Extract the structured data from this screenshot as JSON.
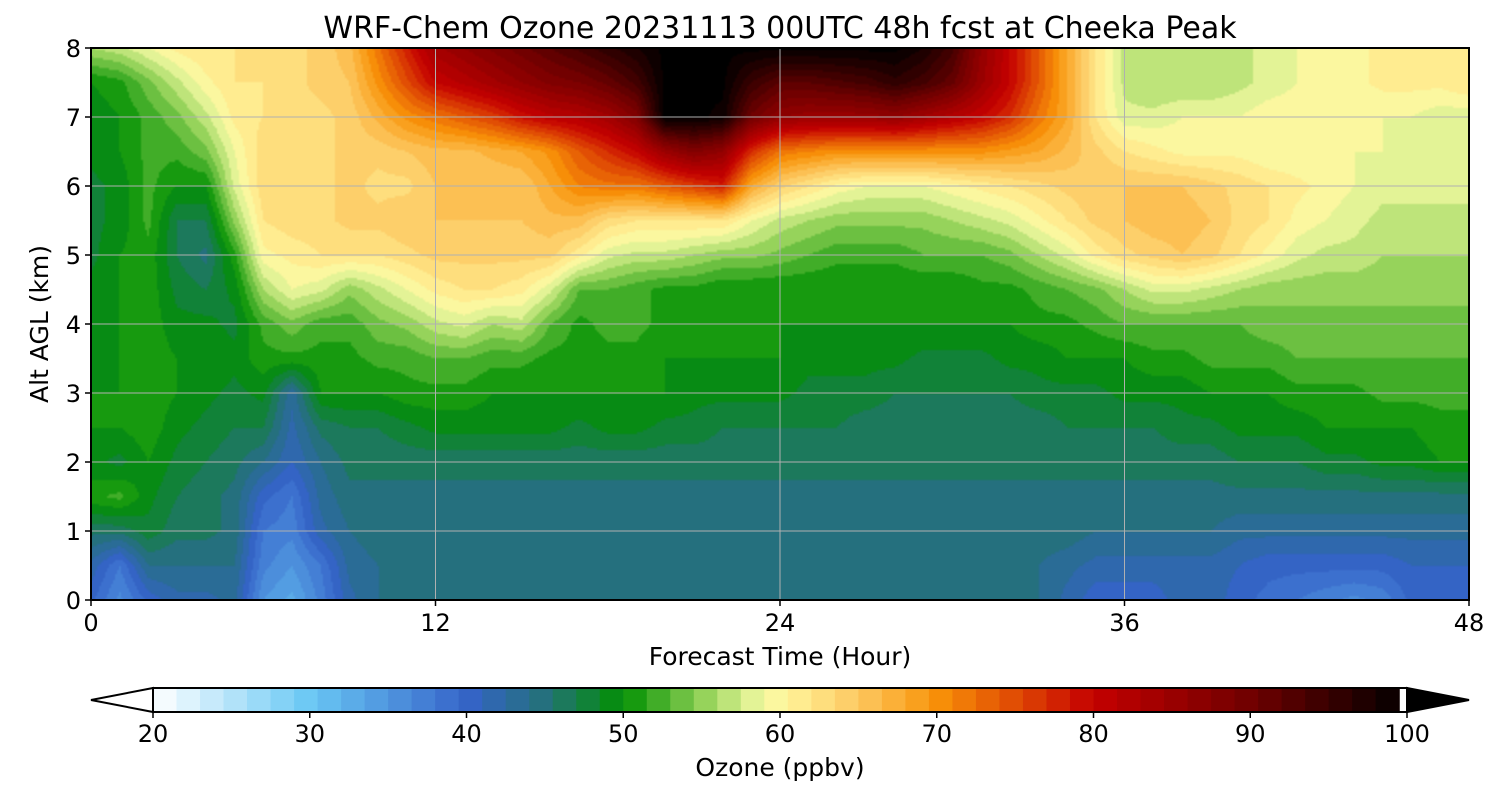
{
  "chart_data": {
    "type": "heatmap",
    "title": "WRF-Chem Ozone  20231113 00UTC 48h fcst at Cheeka Peak",
    "xlabel": "Forecast Time (Hour)",
    "ylabel": "Alt AGL (km)",
    "xlim": [
      0,
      48
    ],
    "ylim": [
      0,
      8
    ],
    "xticks": [
      "0",
      "12",
      "24",
      "36",
      "48"
    ],
    "yticks": [
      "0",
      "1",
      "2",
      "3",
      "4",
      "5",
      "6",
      "7",
      "8"
    ],
    "grid": true,
    "colorbar": {
      "label": "Ozone  (ppbv)",
      "range": [
        20,
        100
      ],
      "ticks": [
        "20",
        "30",
        "40",
        "50",
        "60",
        "70",
        "80",
        "90",
        "100"
      ],
      "extend": "both",
      "orientation": "horizontal",
      "colormap": [
        [
          20,
          "#ffffff"
        ],
        [
          30,
          "#6ac8f4"
        ],
        [
          40,
          "#3563c9"
        ],
        [
          45,
          "#24717a"
        ],
        [
          50,
          "#029002"
        ],
        [
          55,
          "#8fd056"
        ],
        [
          58,
          "#dff294"
        ],
        [
          60,
          "#fff8a0"
        ],
        [
          65,
          "#fdc860"
        ],
        [
          70,
          "#f89208"
        ],
        [
          75,
          "#e04a04"
        ],
        [
          80,
          "#c40000"
        ],
        [
          90,
          "#700000"
        ],
        [
          100,
          "#000000"
        ]
      ]
    },
    "x": [
      0,
      1,
      2,
      3,
      4,
      5,
      6,
      7,
      8,
      9,
      10,
      11,
      12,
      13,
      14,
      15,
      16,
      17,
      18,
      19,
      20,
      21,
      22,
      23,
      24,
      25,
      26,
      27,
      28,
      29,
      30,
      31,
      32,
      33,
      34,
      35,
      36,
      37,
      38,
      39,
      40,
      41,
      42,
      43,
      44,
      45,
      46,
      47,
      48
    ],
    "y": [
      0,
      0.5,
      1,
      1.5,
      2,
      2.5,
      3,
      3.5,
      4,
      4.5,
      5,
      5.5,
      6,
      6.5,
      7,
      7.5,
      8
    ],
    "z": [
      [
        40,
        36,
        40,
        42,
        42,
        43,
        35,
        33,
        37,
        42,
        44,
        45,
        45,
        45,
        45,
        45,
        45,
        45,
        45,
        45,
        45,
        45,
        45,
        45,
        45,
        45,
        45,
        45,
        45,
        45,
        45,
        45,
        45,
        44,
        42,
        40,
        40,
        40,
        42,
        42,
        40,
        39,
        38,
        37,
        36,
        37,
        40,
        40,
        40
      ],
      [
        42,
        38,
        44,
        44,
        44,
        44,
        37,
        35,
        38,
        43,
        44,
        45,
        45,
        45,
        45,
        45,
        45,
        45,
        45,
        45,
        45,
        45,
        45,
        45,
        45,
        45,
        45,
        45,
        45,
        45,
        45,
        45,
        45,
        44,
        43,
        42,
        42,
        42,
        42,
        42,
        41,
        40,
        40,
        40,
        40,
        40,
        41,
        41,
        41
      ],
      [
        46,
        46,
        48,
        46,
        46,
        45,
        38,
        37,
        42,
        44,
        45,
        45,
        45,
        45,
        45,
        45,
        45,
        45,
        45,
        45,
        45,
        45,
        45,
        45,
        45,
        45,
        45,
        45,
        45,
        45,
        45,
        45,
        45,
        45,
        45,
        44,
        44,
        44,
        44,
        44,
        43,
        43,
        43,
        43,
        43,
        43,
        43,
        43,
        43
      ],
      [
        51,
        52,
        49,
        47,
        46,
        45,
        40,
        38,
        43,
        45,
        45,
        45,
        45,
        45,
        45,
        45,
        45,
        45,
        45,
        45,
        45,
        45,
        45,
        45,
        45,
        45,
        45,
        45,
        45,
        45,
        45,
        45,
        45,
        45,
        45,
        45,
        45,
        45,
        45,
        45,
        45,
        45,
        45,
        45,
        45,
        45,
        45,
        45,
        45
      ],
      [
        49,
        48,
        50,
        48,
        47,
        46,
        44,
        41,
        44,
        46,
        46,
        46,
        46,
        46,
        46,
        46,
        46,
        46,
        46,
        46,
        46,
        46,
        46,
        46,
        46,
        46,
        46,
        46,
        46,
        46,
        46,
        46,
        46,
        46,
        46,
        46,
        46,
        46,
        46,
        46,
        47,
        47,
        47,
        48,
        48,
        49,
        49,
        50,
        50
      ],
      [
        50,
        50,
        51,
        49,
        48,
        47,
        47,
        42,
        46,
        47,
        47,
        48,
        49,
        49,
        49,
        49,
        49,
        48,
        49,
        49,
        48,
        48,
        47,
        47,
        47,
        47,
        47,
        46,
        46,
        46,
        46,
        46,
        46,
        46,
        47,
        47,
        47,
        47,
        48,
        48,
        49,
        49,
        49,
        50,
        50,
        50,
        50,
        51,
        51
      ],
      [
        50,
        50,
        51,
        50,
        49,
        48,
        49,
        43,
        50,
        50,
        50,
        51,
        51,
        51,
        50,
        50,
        50,
        50,
        50,
        50,
        50,
        49,
        49,
        49,
        49,
        48,
        48,
        48,
        47,
        47,
        47,
        47,
        47,
        48,
        48,
        48,
        49,
        49,
        49,
        50,
        50,
        50,
        51,
        51,
        51,
        52,
        52,
        52,
        52
      ],
      [
        49,
        50,
        51,
        50,
        50,
        49,
        51,
        51,
        51,
        51,
        52,
        52,
        53,
        53,
        52,
        52,
        51,
        51,
        51,
        51,
        50,
        50,
        50,
        50,
        50,
        49,
        49,
        49,
        49,
        48,
        48,
        48,
        49,
        49,
        50,
        50,
        50,
        51,
        51,
        52,
        52,
        52,
        53,
        53,
        53,
        53,
        53,
        53,
        53
      ],
      [
        49,
        50,
        51,
        49,
        49,
        48,
        52,
        54,
        52,
        52,
        54,
        55,
        57,
        58,
        56,
        57,
        53,
        51,
        52,
        52,
        51,
        50,
        50,
        50,
        50,
        50,
        50,
        50,
        50,
        50,
        50,
        50,
        50,
        51,
        51,
        52,
        53,
        53,
        53,
        53,
        53,
        54,
        54,
        54,
        54,
        54,
        54,
        54,
        54
      ],
      [
        49,
        50,
        51,
        48,
        47,
        49,
        56,
        59,
        58,
        55,
        57,
        59,
        61,
        62,
        62,
        61,
        58,
        53,
        53,
        52,
        51,
        51,
        50,
        50,
        50,
        50,
        50,
        50,
        50,
        50,
        50,
        51,
        51,
        52,
        53,
        54,
        56,
        58,
        58,
        57,
        56,
        55,
        55,
        55,
        55,
        55,
        55,
        55,
        55
      ],
      [
        48,
        50,
        51,
        47,
        45,
        51,
        60,
        61,
        62,
        62,
        62,
        63,
        64,
        64,
        64,
        64,
        64,
        61,
        58,
        57,
        57,
        56,
        55,
        55,
        54,
        53,
        52,
        52,
        52,
        53,
        53,
        53,
        54,
        56,
        58,
        61,
        63,
        64,
        65,
        64,
        62,
        60,
        58,
        57,
        57,
        56,
        56,
        56,
        56
      ],
      [
        48,
        49,
        52,
        47,
        47,
        55,
        62,
        63,
        63,
        64,
        64,
        65,
        65,
        65,
        65,
        65,
        66,
        66,
        63,
        62,
        62,
        62,
        62,
        59,
        57,
        56,
        55,
        55,
        55,
        55,
        56,
        57,
        58,
        60,
        62,
        64,
        65,
        66,
        66,
        65,
        63,
        62,
        60,
        59,
        58,
        57,
        57,
        57,
        57
      ],
      [
        48,
        49,
        52,
        50,
        50,
        58,
        63,
        63,
        63,
        64,
        63,
        63,
        65,
        65,
        65,
        65,
        68,
        71,
        72,
        72,
        74,
        76,
        78,
        68,
        64,
        62,
        60,
        59,
        59,
        59,
        60,
        61,
        62,
        63,
        64,
        65,
        65,
        65,
        65,
        64,
        63,
        62,
        61,
        60,
        59,
        58,
        58,
        58,
        58
      ],
      [
        49,
        50,
        52,
        52,
        54,
        59,
        63,
        63,
        63,
        64,
        64,
        65,
        66,
        66,
        67,
        68,
        70,
        74,
        77,
        80,
        85,
        88,
        86,
        77,
        72,
        71,
        70,
        70,
        70,
        70,
        70,
        70,
        69,
        68,
        66,
        64,
        62,
        61,
        60,
        60,
        60,
        59,
        59,
        59,
        59,
        59,
        58,
        58,
        58
      ],
      [
        49,
        50,
        52,
        54,
        57,
        61,
        62,
        63,
        63,
        64,
        67,
        70,
        72,
        74,
        76,
        79,
        81,
        82,
        84,
        88,
        100,
        100,
        99,
        90,
        86,
        85,
        85,
        85,
        86,
        84,
        82,
        80,
        77,
        72,
        68,
        62,
        58,
        58,
        59,
        59,
        59,
        60,
        60,
        60,
        59,
        59,
        59,
        58,
        58
      ],
      [
        50,
        51,
        54,
        57,
        60,
        62,
        62,
        63,
        64,
        65,
        70,
        75,
        80,
        82,
        84,
        86,
        88,
        89,
        91,
        94,
        100,
        100,
        100,
        95,
        92,
        92,
        93,
        94,
        96,
        94,
        91,
        85,
        80,
        74,
        68,
        62,
        57,
        56,
        56,
        56,
        57,
        58,
        59,
        60,
        60,
        61,
        61,
        61,
        62
      ],
      [
        56,
        57,
        59,
        61,
        62,
        62,
        62,
        63,
        64,
        66,
        72,
        78,
        84,
        86,
        88,
        90,
        92,
        94,
        96,
        98,
        100,
        100,
        100,
        100,
        100,
        100,
        100,
        100,
        100,
        98,
        94,
        86,
        80,
        74,
        68,
        62,
        57,
        56,
        56,
        56,
        57,
        58,
        59,
        60,
        60,
        61,
        61,
        61,
        62
      ]
    ]
  }
}
